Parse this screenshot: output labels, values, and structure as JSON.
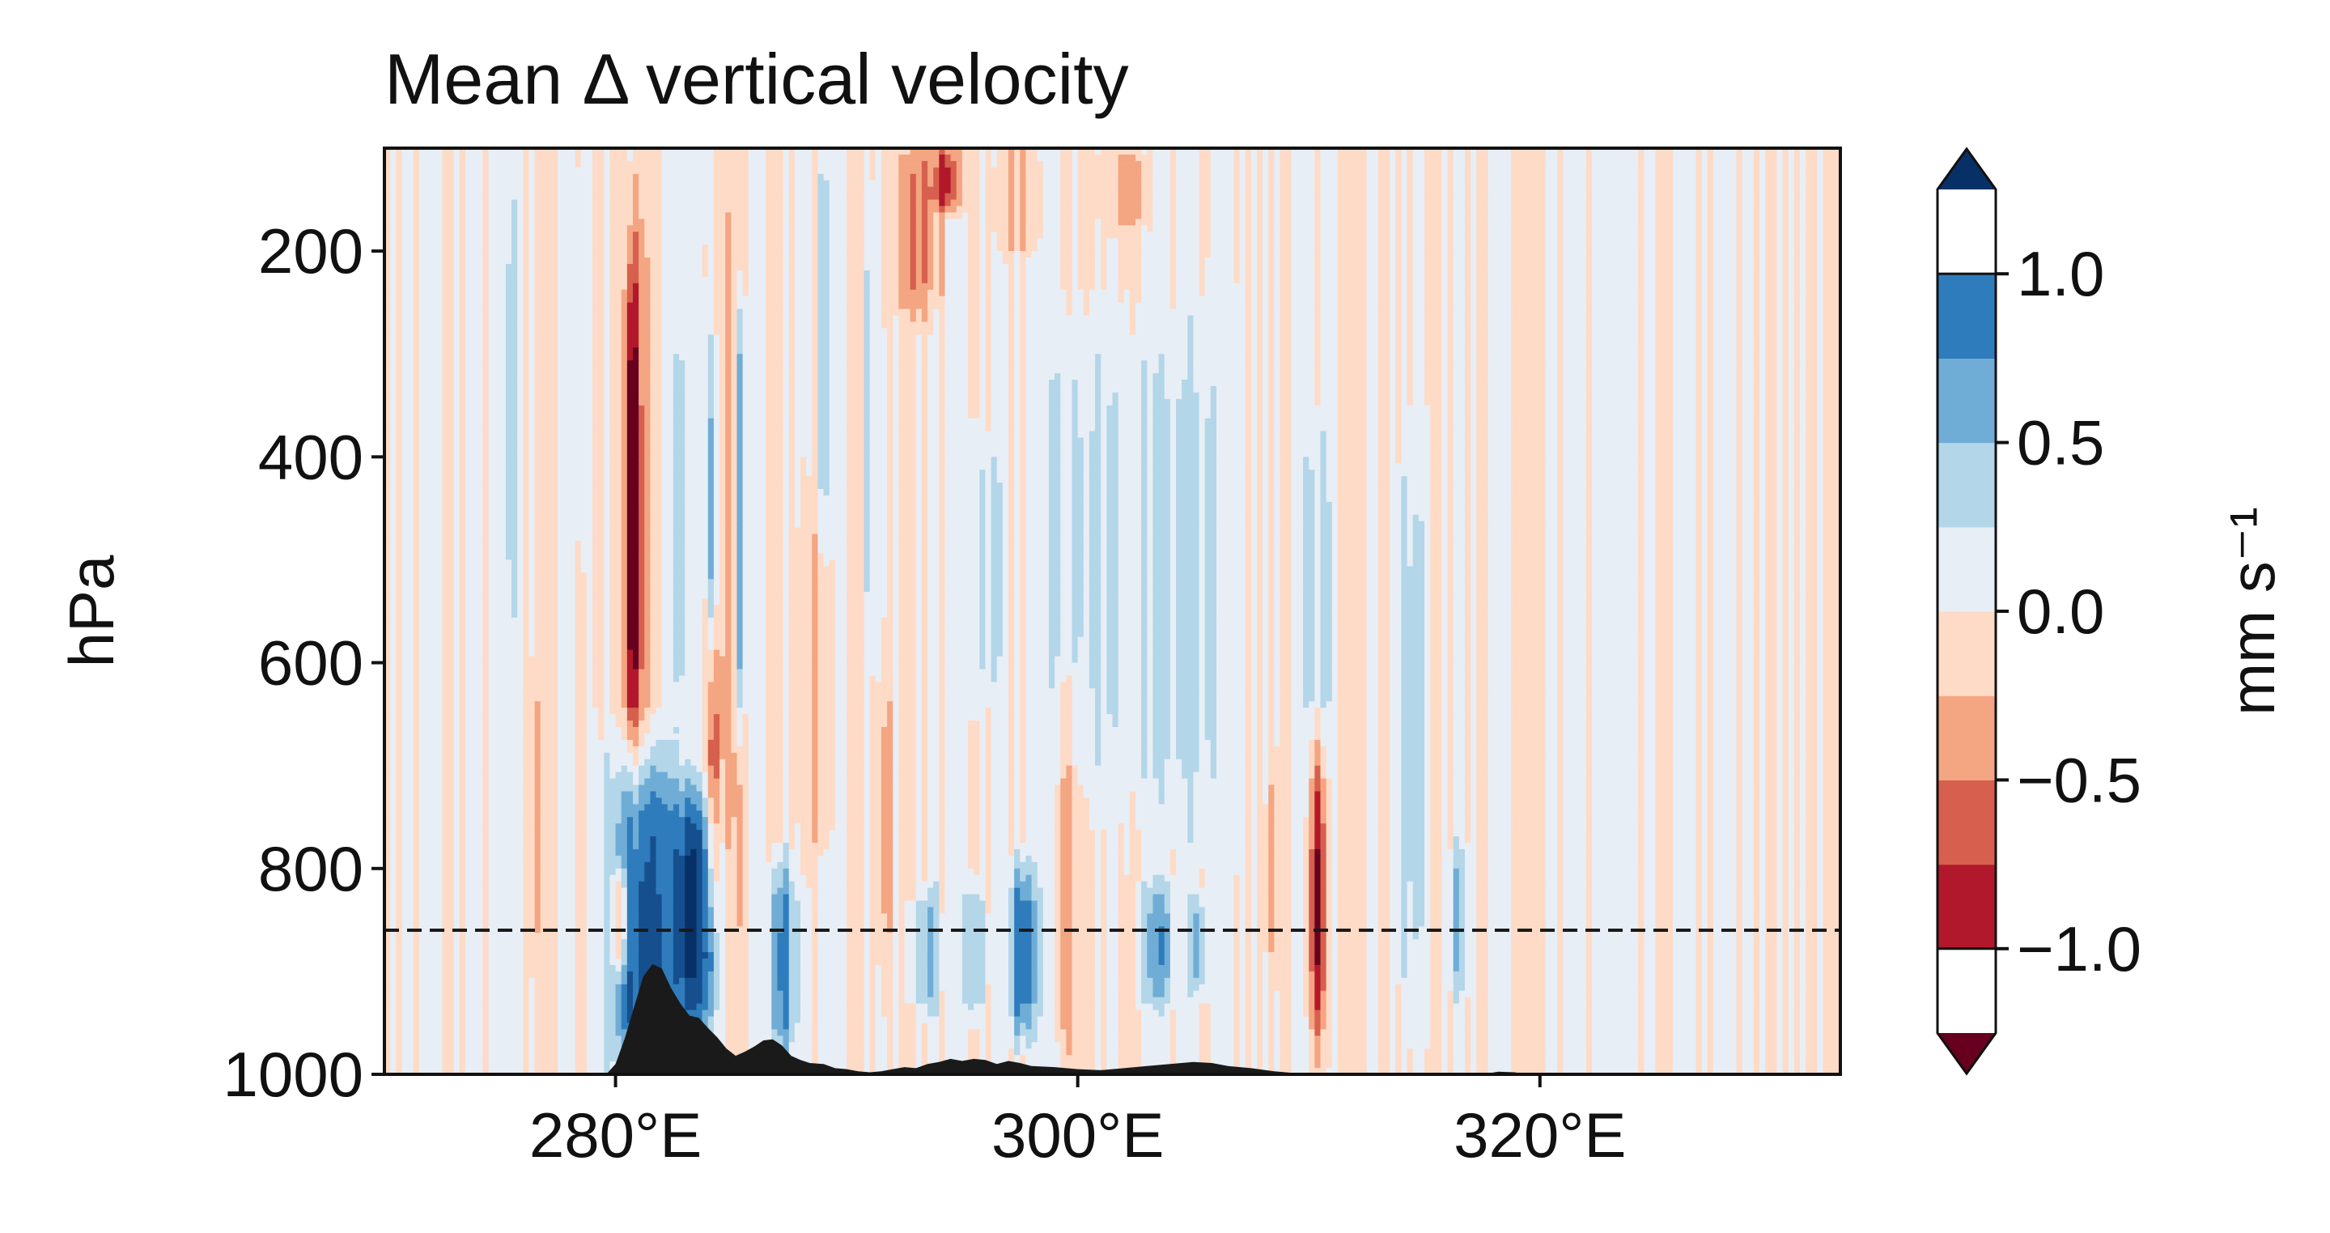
{
  "chart_data": {
    "type": "heatmap",
    "title": "Mean Δ vertical velocity",
    "xlabel": "",
    "ylabel": "hPa",
    "xlim": [
      270,
      333
    ],
    "ylim": [
      1000,
      100
    ],
    "x_ticks": [
      280,
      300,
      320
    ],
    "x_tick_labels": [
      "280°E",
      "300°E",
      "320°E"
    ],
    "y_ticks": [
      200,
      400,
      600,
      800,
      1000
    ],
    "y_tick_labels": [
      "200",
      "400",
      "600",
      "800",
      "1000"
    ],
    "reference_line": {
      "pressure_hPa": 860,
      "style": "dashed"
    },
    "colorbar": {
      "label": "mm s⁻¹",
      "levels": [
        -1.25,
        -1.0,
        -0.75,
        -0.5,
        -0.25,
        0.0,
        0.25,
        0.5,
        0.75,
        1.0,
        1.25
      ],
      "tick_values": [
        -1.0,
        -0.5,
        0.0,
        0.5,
        1.0
      ],
      "tick_labels": [
        "−1.0",
        "−0.5",
        "0.0",
        "0.5",
        "1.0"
      ],
      "colors": [
        "#67001f",
        "#b2182b",
        "#d6604d",
        "#f4a582",
        "#fddbc7",
        "#e8eef5",
        "#b3d6e9",
        "#6fadd6",
        "#2f7cbc",
        "#164f8e",
        "#073067"
      ],
      "extend": "both"
    },
    "anomalies": [
      {
        "lon": 281.2,
        "p_top": 690,
        "p_bot": 1000,
        "half_width": 1.6,
        "value": 1.3
      },
      {
        "lon": 283.5,
        "p_top": 730,
        "p_bot": 960,
        "half_width": 1.1,
        "value": 1.2
      },
      {
        "lon": 285.4,
        "p_top": 250,
        "p_bot": 660,
        "half_width": 0.25,
        "value": 1.0
      },
      {
        "lon": 284.2,
        "p_top": 280,
        "p_bot": 640,
        "half_width": 0.25,
        "value": 0.6
      },
      {
        "lon": 282.8,
        "p_top": 300,
        "p_bot": 620,
        "half_width": 0.25,
        "value": 0.55
      },
      {
        "lon": 287.2,
        "p_top": 800,
        "p_bot": 980,
        "half_width": 0.7,
        "value": 0.85
      },
      {
        "lon": 297.6,
        "p_top": 800,
        "p_bot": 960,
        "half_width": 0.7,
        "value": 0.95
      },
      {
        "lon": 293.5,
        "p_top": 820,
        "p_bot": 940,
        "half_width": 0.6,
        "value": 0.6
      },
      {
        "lon": 295.5,
        "p_top": 820,
        "p_bot": 940,
        "half_width": 0.6,
        "value": 0.55
      },
      {
        "lon": 303.5,
        "p_top": 820,
        "p_bot": 930,
        "half_width": 0.8,
        "value": 0.65
      },
      {
        "lon": 305.2,
        "p_top": 830,
        "p_bot": 920,
        "half_width": 0.5,
        "value": 0.6
      },
      {
        "lon": 316.5,
        "p_top": 780,
        "p_bot": 920,
        "half_width": 0.4,
        "value": 0.55
      },
      {
        "lon": 300.5,
        "p_top": 300,
        "p_bot": 700,
        "half_width": 2.5,
        "value": 0.3
      },
      {
        "lon": 305.0,
        "p_top": 280,
        "p_bot": 760,
        "half_width": 2.3,
        "value": 0.32
      },
      {
        "lon": 296.0,
        "p_top": 380,
        "p_bot": 640,
        "half_width": 1.2,
        "value": 0.28
      },
      {
        "lon": 310.5,
        "p_top": 350,
        "p_bot": 750,
        "half_width": 1.0,
        "value": 0.27
      },
      {
        "lon": 314.5,
        "p_top": 420,
        "p_bot": 900,
        "half_width": 0.9,
        "value": 0.3
      },
      {
        "lon": 275.5,
        "p_top": 150,
        "p_bot": 560,
        "half_width": 0.4,
        "value": 0.3
      },
      {
        "lon": 278.5,
        "p_top": 120,
        "p_bot": 480,
        "half_width": 0.3,
        "value": 0.3
      },
      {
        "lon": 289.0,
        "p_top": 120,
        "p_bot": 520,
        "half_width": 0.4,
        "value": 0.28
      },
      {
        "lon": 291.0,
        "p_top": 150,
        "p_bot": 600,
        "half_width": 0.4,
        "value": 0.28
      },
      {
        "lon": 280.9,
        "p_top": 150,
        "p_bot": 860,
        "half_width": 0.8,
        "value": -0.5
      },
      {
        "lon": 280.7,
        "p_top": 220,
        "p_bot": 660,
        "half_width": 0.3,
        "value": -0.9
      },
      {
        "lon": 280.2,
        "p_top": 800,
        "p_bot": 900,
        "half_width": 0.4,
        "value": -0.8
      },
      {
        "lon": 285.0,
        "p_top": 120,
        "p_bot": 1000,
        "half_width": 0.8,
        "value": -0.35
      },
      {
        "lon": 284.2,
        "p_top": 560,
        "p_bot": 840,
        "half_width": 0.35,
        "value": -0.65
      },
      {
        "lon": 293.0,
        "p_top": 100,
        "p_bot": 260,
        "half_width": 1.3,
        "value": -0.5
      },
      {
        "lon": 294.4,
        "p_top": 100,
        "p_bot": 160,
        "half_width": 0.8,
        "value": -0.8
      },
      {
        "lon": 297.5,
        "p_top": 100,
        "p_bot": 200,
        "half_width": 1.2,
        "value": -0.35
      },
      {
        "lon": 302.0,
        "p_top": 100,
        "p_bot": 180,
        "half_width": 1.5,
        "value": -0.35
      },
      {
        "lon": 288.8,
        "p_top": 450,
        "p_bot": 780,
        "half_width": 0.9,
        "value": -0.35
      },
      {
        "lon": 291.7,
        "p_top": 600,
        "p_bot": 900,
        "half_width": 0.5,
        "value": -0.3
      },
      {
        "lon": 299.5,
        "p_top": 600,
        "p_bot": 1000,
        "half_width": 0.6,
        "value": -0.35
      },
      {
        "lon": 310.4,
        "p_top": 680,
        "p_bot": 960,
        "half_width": 0.5,
        "value": -0.95
      },
      {
        "lon": 308.5,
        "p_top": 700,
        "p_bot": 900,
        "half_width": 0.4,
        "value": -0.35
      },
      {
        "lon": 276.5,
        "p_top": 600,
        "p_bot": 900,
        "half_width": 0.5,
        "value": -0.3
      }
    ],
    "orography_profile": [
      [
        279.6,
        1000
      ],
      [
        280.0,
        990
      ],
      [
        280.4,
        965
      ],
      [
        280.8,
        935
      ],
      [
        281.2,
        905
      ],
      [
        281.6,
        893
      ],
      [
        282.0,
        897
      ],
      [
        282.4,
        916
      ],
      [
        282.8,
        931
      ],
      [
        283.2,
        943
      ],
      [
        283.6,
        945
      ],
      [
        284.0,
        955
      ],
      [
        284.4,
        964
      ],
      [
        284.8,
        975
      ],
      [
        285.2,
        982
      ],
      [
        285.6,
        978
      ],
      [
        286.0,
        973
      ],
      [
        286.4,
        967
      ],
      [
        286.8,
        966
      ],
      [
        287.2,
        972
      ],
      [
        287.6,
        982
      ],
      [
        288.0,
        986
      ],
      [
        288.4,
        989
      ],
      [
        289.0,
        990
      ],
      [
        289.5,
        994
      ],
      [
        290.0,
        995
      ],
      [
        290.5,
        997
      ],
      [
        291.0,
        998
      ],
      [
        291.5,
        997
      ],
      [
        292.0,
        995
      ],
      [
        292.5,
        993
      ],
      [
        293.0,
        994
      ],
      [
        293.5,
        990
      ],
      [
        294.0,
        988
      ],
      [
        294.5,
        985
      ],
      [
        295.0,
        987
      ],
      [
        295.5,
        985
      ],
      [
        296.0,
        986
      ],
      [
        296.5,
        990
      ],
      [
        297.0,
        987
      ],
      [
        297.5,
        989
      ],
      [
        298.0,
        992
      ],
      [
        299.0,
        993
      ],
      [
        300.0,
        995
      ],
      [
        301.0,
        996
      ],
      [
        302.0,
        994
      ],
      [
        303.0,
        992
      ],
      [
        304.0,
        990
      ],
      [
        305.0,
        988
      ],
      [
        305.8,
        989
      ],
      [
        306.5,
        992
      ],
      [
        307.5,
        994
      ],
      [
        308.5,
        997
      ],
      [
        309.5,
        999
      ],
      [
        310.0,
        1000
      ]
    ],
    "orography_bump": [
      [
        317.5,
        1000
      ],
      [
        318.2,
        997.5
      ],
      [
        318.9,
        998
      ],
      [
        319.5,
        1000
      ]
    ]
  }
}
